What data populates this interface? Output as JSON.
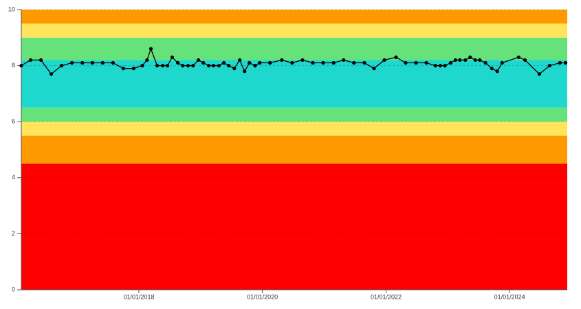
{
  "chart_data": {
    "type": "line",
    "color": "#000000",
    "grid": true,
    "bands": [
      {
        "from": 0,
        "to": 4.5,
        "color": "#ff0000"
      },
      {
        "from": 4.5,
        "to": 5.5,
        "color": "#ff9900"
      },
      {
        "from": 5.5,
        "to": 6,
        "color": "#ffe45c"
      },
      {
        "from": 6,
        "to": 6.5,
        "color": "#66e27a"
      },
      {
        "from": 6.5,
        "to": 8.2,
        "color": "#1fd8cd"
      },
      {
        "from": 8.2,
        "to": 9,
        "color": "#66e27a"
      },
      {
        "from": 9,
        "to": 9.5,
        "color": "#ffe45c"
      },
      {
        "from": 9.5,
        "to": 10,
        "color": "#ff9900"
      }
    ],
    "ylim": [
      0,
      10
    ],
    "yticks": [
      0,
      2,
      4,
      6,
      8,
      10
    ],
    "xlim": [
      "2016-02-06",
      "2024-12-07"
    ],
    "xticks": [
      {
        "value": "2018-01-01",
        "label": "01/01/2018"
      },
      {
        "value": "2020-01-01",
        "label": "01/01/2020"
      },
      {
        "value": "2022-01-01",
        "label": "01/01/2022"
      },
      {
        "value": "2024-01-01",
        "label": "01/01/2024"
      }
    ],
    "x": [
      "2016-02-06",
      "2016-04-01",
      "2016-06-01",
      "2016-08-01",
      "2016-10-01",
      "2016-12-01",
      "2017-02-01",
      "2017-04-01",
      "2017-06-01",
      "2017-08-01",
      "2017-10-01",
      "2017-12-01",
      "2018-01-21",
      "2018-02-18",
      "2018-03-13",
      "2018-04-19",
      "2018-05-22",
      "2018-06-19",
      "2018-07-17",
      "2018-08-19",
      "2018-09-17",
      "2018-10-19",
      "2018-11-17",
      "2018-12-19",
      "2019-01-17",
      "2019-02-18",
      "2019-03-18",
      "2019-04-19",
      "2019-05-18",
      "2019-06-16",
      "2019-07-19",
      "2019-08-20",
      "2019-09-18",
      "2019-10-16",
      "2019-11-19",
      "2019-12-16",
      "2020-02-15",
      "2020-04-25",
      "2020-06-25",
      "2020-08-25",
      "2020-10-25",
      "2020-12-25",
      "2021-02-25",
      "2021-04-25",
      "2021-06-25",
      "2021-08-26",
      "2021-10-22",
      "2021-12-22",
      "2022-03-01",
      "2022-04-27",
      "2022-06-27",
      "2022-08-27",
      "2022-10-19",
      "2022-11-18",
      "2022-12-15",
      "2023-01-18",
      "2023-02-15",
      "2023-03-13",
      "2023-04-15",
      "2023-05-13",
      "2023-06-12",
      "2023-07-09",
      "2023-08-12",
      "2023-09-18",
      "2023-10-20",
      "2023-11-18",
      "2024-02-24",
      "2024-04-01",
      "2024-06-25",
      "2024-08-25",
      "2024-10-25",
      "2024-11-27"
    ],
    "values": [
      8.0,
      8.2,
      8.2,
      7.7,
      8.0,
      8.1,
      8.1,
      8.1,
      8.1,
      8.1,
      7.9,
      7.9,
      8.0,
      8.2,
      8.6,
      8.0,
      8.0,
      8.0,
      8.3,
      8.1,
      8.0,
      8.0,
      8.0,
      8.2,
      8.1,
      8.0,
      8.0,
      8.0,
      8.1,
      8.0,
      7.9,
      8.2,
      7.8,
      8.1,
      8.0,
      8.1,
      8.1,
      8.2,
      8.1,
      8.2,
      8.1,
      8.1,
      8.1,
      8.2,
      8.1,
      8.1,
      7.9,
      8.2,
      8.3,
      8.1,
      8.1,
      8.1,
      8.0,
      8.0,
      8.0,
      8.1,
      8.2,
      8.2,
      8.2,
      8.3,
      8.2,
      8.2,
      8.1,
      7.9,
      7.8,
      8.1,
      8.3,
      8.2,
      7.7,
      8.0,
      8.1,
      8.1
    ]
  }
}
